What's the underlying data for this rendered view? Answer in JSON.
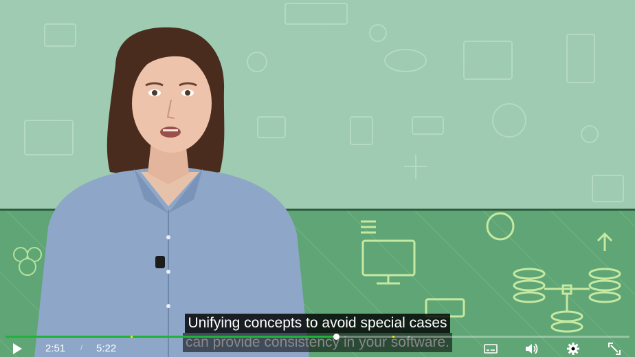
{
  "video": {
    "captions": [
      "Unifying concepts to avoid special cases",
      "can provide consistency in your software."
    ]
  },
  "player": {
    "current_time": "2:51",
    "separator": "/",
    "duration": "5:22",
    "progress_fraction": 0.53,
    "chapter_markers": [
      0.2,
      0.62
    ],
    "accent_color": "#1fb33a",
    "marker_color": "#f3e600"
  },
  "icons": {
    "play": "play-icon",
    "captions": "captions-icon",
    "volume": "volume-icon",
    "settings": "gear-icon",
    "fullscreen": "fullscreen-icon"
  }
}
